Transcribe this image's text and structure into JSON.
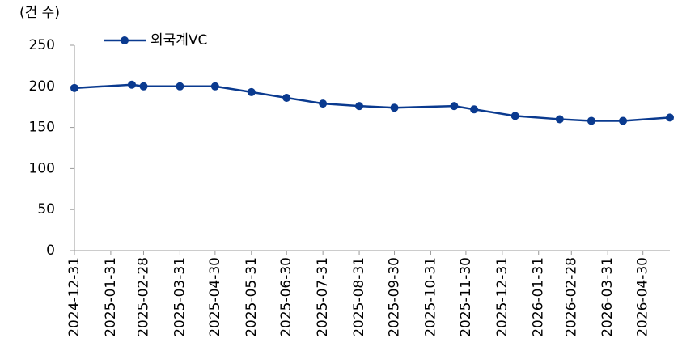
{
  "chart_data": {
    "type": "line",
    "y_label": "(건 수)",
    "x": [
      "2024-12-31",
      "2025-02-18",
      "2025-02-28",
      "2025-03-31",
      "2025-04-30",
      "2025-05-31",
      "2025-06-30",
      "2025-07-31",
      "2025-08-31",
      "2025-09-30",
      "2025-11-20",
      "2025-12-07",
      "2026-01-11",
      "2026-02-18",
      "2026-03-17",
      "2026-04-13",
      "2026-05-23"
    ],
    "series": [
      {
        "name": "외국계VC",
        "color": "#0a3a8f",
        "values": [
          198,
          202,
          200,
          200,
          200,
          193,
          186,
          179,
          176,
          174,
          176,
          172,
          164,
          160,
          158,
          158,
          162
        ]
      }
    ],
    "xlim": [
      "2024-12-31",
      "2026-05-23"
    ],
    "xticks": [
      "2024-12-31",
      "2025-01-31",
      "2025-02-28",
      "2025-03-31",
      "2025-04-30",
      "2025-05-31",
      "2025-06-30",
      "2025-07-31",
      "2025-08-31",
      "2025-09-30",
      "2025-10-31",
      "2025-11-30",
      "2025-12-31",
      "2026-01-31",
      "2026-02-28",
      "2026-03-31",
      "2026-04-30"
    ],
    "ylim": [
      0,
      250
    ],
    "yticks": [
      0,
      50,
      100,
      150,
      200,
      250
    ],
    "grid": false,
    "legend": "top-left"
  }
}
